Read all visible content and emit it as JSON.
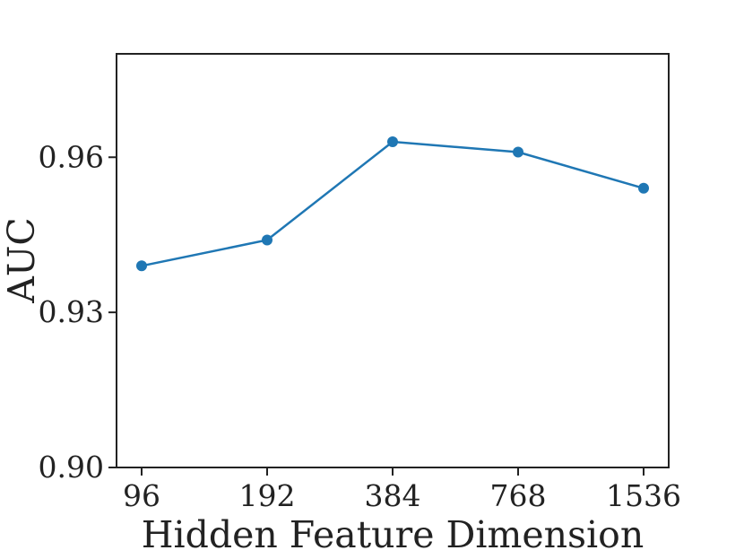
{
  "chart_data": {
    "type": "line",
    "title": "",
    "xlabel": "Hidden Feature Dimension",
    "ylabel": "AUC",
    "categories": [
      "96",
      "192",
      "384",
      "768",
      "1536"
    ],
    "series": [
      {
        "values": [
          0.939,
          0.944,
          0.963,
          0.961,
          0.954
        ]
      }
    ],
    "ylim": [
      0.9,
      0.98
    ],
    "yticks": [
      "0.90",
      "0.93",
      "0.96"
    ],
    "grid": false,
    "legend": "none",
    "colors": {
      "series": "#1f77b4",
      "axis": "#222222"
    }
  }
}
